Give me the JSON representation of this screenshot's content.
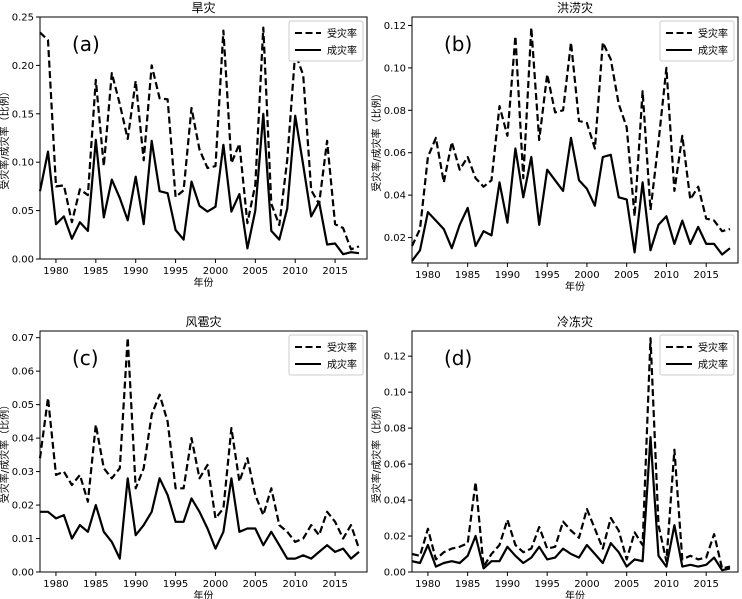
{
  "chart_data": [
    {
      "type": "line",
      "panel_label": "(a)",
      "title": "旱灾",
      "xlabel": "年份",
      "ylabel": "受灾率/成灾率（比例）",
      "xlim": [
        1978,
        2019
      ],
      "ylim": [
        0,
        0.25
      ],
      "xticks": [
        1980,
        1985,
        1990,
        1995,
        2000,
        2005,
        2010,
        2015
      ],
      "xtick_labels": [
        "1980",
        "1985",
        "1990",
        "1995",
        "2000",
        "2005",
        "2010",
        "2015"
      ],
      "yticks": [
        0,
        0.05,
        0.1,
        0.15,
        0.2,
        0.25
      ],
      "ytick_labels": [
        "0.00",
        "0.05",
        "0.10",
        "0.15",
        "0.20",
        "0.25"
      ],
      "legend_position": "top-right",
      "x": [
        1978,
        1979,
        1980,
        1981,
        1982,
        1983,
        1984,
        1985,
        1986,
        1987,
        1988,
        1989,
        1990,
        1991,
        1992,
        1993,
        1994,
        1995,
        1996,
        1997,
        1998,
        1999,
        2000,
        2001,
        2002,
        2003,
        2004,
        2005,
        2006,
        2007,
        2008,
        2009,
        2010,
        2011,
        2012,
        2013,
        2014,
        2015,
        2016,
        2017,
        2018
      ],
      "series": [
        {
          "name": "受灾率",
          "style": "dashed",
          "values": [
            0.234,
            0.226,
            0.075,
            0.076,
            0.038,
            0.072,
            0.066,
            0.185,
            0.096,
            0.192,
            0.16,
            0.124,
            0.184,
            0.102,
            0.2,
            0.166,
            0.165,
            0.064,
            0.071,
            0.156,
            0.113,
            0.094,
            0.096,
            0.236,
            0.099,
            0.119,
            0.037,
            0.077,
            0.239,
            0.057,
            0.035,
            0.102,
            0.213,
            0.19,
            0.071,
            0.057,
            0.122,
            0.036,
            0.032,
            0.01,
            0.013
          ]
        },
        {
          "name": "成灾率",
          "style": "solid",
          "values": [
            0.07,
            0.111,
            0.036,
            0.044,
            0.021,
            0.038,
            0.029,
            0.123,
            0.043,
            0.082,
            0.063,
            0.04,
            0.085,
            0.036,
            0.122,
            0.07,
            0.068,
            0.03,
            0.02,
            0.08,
            0.055,
            0.049,
            0.054,
            0.118,
            0.049,
            0.067,
            0.011,
            0.05,
            0.15,
            0.029,
            0.02,
            0.052,
            0.148,
            0.097,
            0.044,
            0.059,
            0.015,
            0.016,
            0.005,
            0.007,
            0.006
          ]
        }
      ]
    },
    {
      "type": "line",
      "panel_label": "(b)",
      "title": "洪涝灾",
      "xlabel": "年份",
      "ylabel": "受灾率/成灾率（比例）",
      "xlim": [
        1978,
        2019
      ],
      "ylim": [
        0.008,
        0.124
      ],
      "xticks": [
        1980,
        1985,
        1990,
        1995,
        2000,
        2005,
        2010,
        2015
      ],
      "xtick_labels": [
        "1980",
        "1985",
        "1990",
        "1995",
        "2000",
        "2005",
        "2010",
        "2015"
      ],
      "yticks": [
        0.02,
        0.04,
        0.06,
        0.08,
        0.1,
        0.12
      ],
      "ytick_labels": [
        "0.02",
        "0.04",
        "0.06",
        "0.08",
        "0.10",
        "0.12"
      ],
      "legend_position": "top-right",
      "x": [
        1978,
        1979,
        1980,
        1981,
        1982,
        1983,
        1984,
        1985,
        1986,
        1987,
        1988,
        1989,
        1990,
        1991,
        1992,
        1993,
        1994,
        1995,
        1996,
        1997,
        1998,
        1999,
        2000,
        2001,
        2002,
        2003,
        2004,
        2005,
        2006,
        2007,
        2008,
        2009,
        2010,
        2011,
        2012,
        2013,
        2014,
        2015,
        2016,
        2017,
        2018
      ],
      "series": [
        {
          "name": "受灾率",
          "style": "dashed",
          "values": [
            0.016,
            0.024,
            0.058,
            0.067,
            0.046,
            0.065,
            0.052,
            0.058,
            0.048,
            0.044,
            0.047,
            0.082,
            0.068,
            0.115,
            0.048,
            0.119,
            0.066,
            0.097,
            0.079,
            0.08,
            0.112,
            0.075,
            0.074,
            0.062,
            0.112,
            0.104,
            0.083,
            0.072,
            0.03,
            0.089,
            0.033,
            0.065,
            0.1,
            0.042,
            0.068,
            0.038,
            0.044,
            0.029,
            0.028,
            0.023,
            0.024
          ]
        },
        {
          "name": "成灾率",
          "style": "solid",
          "values": [
            0.009,
            0.014,
            0.032,
            0.028,
            0.024,
            0.015,
            0.026,
            0.034,
            0.016,
            0.023,
            0.021,
            0.046,
            0.027,
            0.062,
            0.039,
            0.058,
            0.026,
            0.052,
            0.047,
            0.042,
            0.067,
            0.047,
            0.043,
            0.035,
            0.058,
            0.059,
            0.039,
            0.038,
            0.013,
            0.046,
            0.014,
            0.026,
            0.03,
            0.017,
            0.028,
            0.017,
            0.025,
            0.017,
            0.017,
            0.012,
            0.015
          ]
        }
      ]
    },
    {
      "type": "line",
      "panel_label": "(c)",
      "title": "风雹灾",
      "xlabel": "年份",
      "ylabel": "受灾率/成灾率（比例）",
      "xlim": [
        1978,
        2019
      ],
      "ylim": [
        0,
        0.072
      ],
      "xticks": [
        1980,
        1985,
        1990,
        1995,
        2000,
        2005,
        2010,
        2015
      ],
      "xtick_labels": [
        "1980",
        "1985",
        "1990",
        "1995",
        "2000",
        "2005",
        "2010",
        "2015"
      ],
      "yticks": [
        0,
        0.01,
        0.02,
        0.03,
        0.04,
        0.05,
        0.06,
        0.07
      ],
      "ytick_labels": [
        "0.00",
        "0.01",
        "0.02",
        "0.03",
        "0.04",
        "0.05",
        "0.06",
        "0.07"
      ],
      "legend_position": "top-right",
      "x": [
        1978,
        1979,
        1980,
        1981,
        1982,
        1983,
        1984,
        1985,
        1986,
        1987,
        1988,
        1989,
        1990,
        1991,
        1992,
        1993,
        1994,
        1995,
        1996,
        1997,
        1998,
        1999,
        2000,
        2001,
        2002,
        2003,
        2004,
        2005,
        2006,
        2007,
        2008,
        2009,
        2010,
        2011,
        2012,
        2013,
        2014,
        2015,
        2016,
        2017,
        2018
      ],
      "series": [
        {
          "name": "受灾率",
          "style": "dashed",
          "values": [
            0.034,
            0.052,
            0.029,
            0.03,
            0.026,
            0.029,
            0.021,
            0.044,
            0.031,
            0.028,
            0.031,
            0.07,
            0.025,
            0.031,
            0.047,
            0.053,
            0.045,
            0.025,
            0.025,
            0.04,
            0.028,
            0.032,
            0.016,
            0.019,
            0.043,
            0.027,
            0.034,
            0.023,
            0.017,
            0.025,
            0.014,
            0.012,
            0.009,
            0.01,
            0.014,
            0.011,
            0.018,
            0.015,
            0.01,
            0.014,
            0.007
          ]
        },
        {
          "name": "成灾率",
          "style": "solid",
          "values": [
            0.018,
            0.018,
            0.016,
            0.017,
            0.01,
            0.014,
            0.012,
            0.02,
            0.012,
            0.009,
            0.004,
            0.028,
            0.011,
            0.014,
            0.018,
            0.028,
            0.023,
            0.015,
            0.015,
            0.022,
            0.018,
            0.013,
            0.007,
            0.012,
            0.028,
            0.012,
            0.013,
            0.013,
            0.008,
            0.012,
            0.008,
            0.004,
            0.004,
            0.005,
            0.004,
            0.006,
            0.008,
            0.006,
            0.007,
            0.004,
            0.006
          ]
        }
      ]
    },
    {
      "type": "line",
      "panel_label": "(d)",
      "title": "冷冻灾",
      "xlabel": "年份",
      "ylabel": "受灾率/成灾率（比例）",
      "xlim": [
        1978,
        2019
      ],
      "ylim": [
        0,
        0.134
      ],
      "xticks": [
        1980,
        1985,
        1990,
        1995,
        2000,
        2005,
        2010,
        2015
      ],
      "xtick_labels": [
        "1980",
        "1985",
        "1990",
        "1995",
        "2000",
        "2005",
        "2010",
        "2015"
      ],
      "yticks": [
        0,
        0.02,
        0.04,
        0.06,
        0.08,
        0.1,
        0.12
      ],
      "ytick_labels": [
        "0.00",
        "0.02",
        "0.04",
        "0.06",
        "0.08",
        "0.10",
        "0.12"
      ],
      "legend_position": "top-right",
      "x": [
        1978,
        1979,
        1980,
        1981,
        1982,
        1983,
        1984,
        1985,
        1986,
        1987,
        1988,
        1989,
        1990,
        1991,
        1992,
        1993,
        1994,
        1995,
        1996,
        1997,
        1998,
        1999,
        2000,
        2001,
        2002,
        2003,
        2004,
        2005,
        2006,
        2007,
        2008,
        2009,
        2010,
        2011,
        2012,
        2013,
        2014,
        2015,
        2016,
        2017,
        2018
      ],
      "series": [
        {
          "name": "受灾率",
          "style": "dashed",
          "values": [
            0.01,
            0.009,
            0.024,
            0.007,
            0.011,
            0.013,
            0.014,
            0.016,
            0.05,
            0.003,
            0.01,
            0.015,
            0.029,
            0.015,
            0.011,
            0.013,
            0.025,
            0.013,
            0.014,
            0.028,
            0.023,
            0.019,
            0.035,
            0.024,
            0.013,
            0.03,
            0.023,
            0.007,
            0.022,
            0.015,
            0.13,
            0.026,
            0.006,
            0.068,
            0.007,
            0.009,
            0.007,
            0.008,
            0.021,
            0.002,
            0.003
          ]
        },
        {
          "name": "成灾率",
          "style": "solid",
          "values": [
            0.006,
            0.005,
            0.015,
            0.003,
            0.005,
            0.006,
            0.005,
            0.009,
            0.02,
            0.002,
            0.006,
            0.006,
            0.014,
            0.009,
            0.005,
            0.008,
            0.014,
            0.007,
            0.008,
            0.013,
            0.01,
            0.008,
            0.015,
            0.01,
            0.005,
            0.016,
            0.011,
            0.003,
            0.007,
            0.006,
            0.075,
            0.009,
            0.003,
            0.026,
            0.003,
            0.004,
            0.003,
            0.004,
            0.008,
            0.001,
            0.002
          ]
        }
      ]
    }
  ]
}
